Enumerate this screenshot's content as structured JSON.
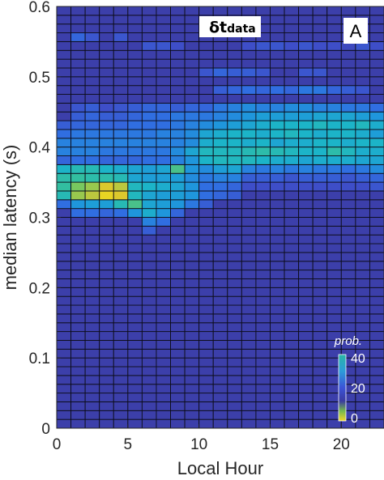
{
  "chart_data": {
    "type": "heatmap",
    "title_symbol": "δt",
    "title_subscript": "data",
    "panel_label": "A",
    "xlabel": "Local Hour",
    "ylabel": "median latency (s)",
    "xlim": [
      0,
      23
    ],
    "ylim": [
      0,
      0.6
    ],
    "x_ticks": [
      0,
      5,
      10,
      15,
      20
    ],
    "y_ticks": [
      0,
      0.1,
      0.2,
      0.3,
      0.4,
      0.5,
      0.6
    ],
    "x_tick_labels": [
      "0",
      "5",
      "10",
      "15",
      "20"
    ],
    "y_tick_labels": [
      "0",
      "0.1",
      "0.2",
      "0.3",
      "0.4",
      "0.5",
      "0.6"
    ],
    "x_bin_size_hours": 1,
    "y_bin_size_s": 0.0125,
    "colorbar": {
      "title": "prob.",
      "tick_labels": [
        "40",
        "20",
        "0"
      ],
      "ticks": [
        40,
        20,
        0
      ]
    },
    "background_value": 15,
    "cells": [
      [
        8,
        49,
        17
      ],
      [
        9,
        49,
        18
      ],
      [
        13,
        48,
        18
      ],
      [
        14,
        48,
        17
      ],
      [
        15,
        48,
        18
      ],
      [
        17,
        48,
        17
      ],
      [
        18,
        48,
        18
      ],
      [
        19,
        48,
        17
      ],
      [
        20,
        48,
        18
      ],
      [
        21,
        48,
        17
      ],
      [
        1,
        44,
        21
      ],
      [
        2,
        44,
        19
      ],
      [
        4,
        44,
        19
      ],
      [
        6,
        43,
        19
      ],
      [
        7,
        43,
        19
      ],
      [
        8,
        43,
        18
      ],
      [
        13,
        43,
        18
      ],
      [
        14,
        43,
        19
      ],
      [
        15,
        43,
        19
      ],
      [
        16,
        43,
        18
      ],
      [
        17,
        43,
        19
      ],
      [
        18,
        43,
        18
      ],
      [
        19,
        43,
        18
      ],
      [
        20,
        43,
        17
      ],
      [
        21,
        43,
        19
      ],
      [
        22,
        43,
        18
      ],
      [
        10,
        40,
        19
      ],
      [
        11,
        40,
        21
      ],
      [
        12,
        40,
        20
      ],
      [
        13,
        40,
        20
      ],
      [
        14,
        40,
        19
      ],
      [
        17,
        40,
        19
      ],
      [
        18,
        40,
        19
      ],
      [
        11,
        38,
        20
      ],
      [
        12,
        38,
        21
      ],
      [
        13,
        38,
        22
      ],
      [
        14,
        38,
        21
      ],
      [
        15,
        38,
        22
      ],
      [
        16,
        38,
        21
      ],
      [
        17,
        38,
        23
      ],
      [
        18,
        38,
        23
      ],
      [
        19,
        38,
        21
      ],
      [
        20,
        38,
        20
      ],
      [
        21,
        38,
        19
      ],
      [
        1,
        36,
        19
      ],
      [
        2,
        36,
        20
      ],
      [
        3,
        36,
        18
      ],
      [
        4,
        36,
        19
      ],
      [
        5,
        36,
        20
      ],
      [
        6,
        36,
        21
      ],
      [
        7,
        36,
        21
      ],
      [
        8,
        36,
        20
      ],
      [
        9,
        36,
        21
      ],
      [
        10,
        36,
        21
      ],
      [
        11,
        36,
        23
      ],
      [
        12,
        36,
        24
      ],
      [
        13,
        36,
        25
      ],
      [
        14,
        36,
        24
      ],
      [
        15,
        36,
        24
      ],
      [
        16,
        36,
        25
      ],
      [
        17,
        36,
        25
      ],
      [
        18,
        36,
        24
      ],
      [
        19,
        36,
        24
      ],
      [
        20,
        36,
        23
      ],
      [
        21,
        36,
        23
      ],
      [
        22,
        36,
        22
      ],
      [
        1,
        35,
        20
      ],
      [
        2,
        35,
        21
      ],
      [
        3,
        35,
        20
      ],
      [
        4,
        35,
        20
      ],
      [
        5,
        35,
        21
      ],
      [
        6,
        35,
        22
      ],
      [
        7,
        35,
        22
      ],
      [
        8,
        35,
        23
      ],
      [
        9,
        35,
        23
      ],
      [
        10,
        35,
        23
      ],
      [
        11,
        35,
        24
      ],
      [
        12,
        35,
        25
      ],
      [
        13,
        35,
        26
      ],
      [
        14,
        35,
        27
      ],
      [
        15,
        35,
        27
      ],
      [
        16,
        35,
        27
      ],
      [
        17,
        35,
        27
      ],
      [
        18,
        35,
        28
      ],
      [
        19,
        35,
        28
      ],
      [
        20,
        35,
        28
      ],
      [
        21,
        35,
        27
      ],
      [
        22,
        35,
        26
      ],
      [
        0,
        34,
        20
      ],
      [
        1,
        34,
        21
      ],
      [
        2,
        34,
        21
      ],
      [
        3,
        34,
        21
      ],
      [
        4,
        34,
        21
      ],
      [
        5,
        34,
        22
      ],
      [
        6,
        34,
        22
      ],
      [
        7,
        34,
        22
      ],
      [
        8,
        34,
        23
      ],
      [
        9,
        34,
        24
      ],
      [
        10,
        34,
        25
      ],
      [
        11,
        34,
        26
      ],
      [
        12,
        34,
        27
      ],
      [
        13,
        34,
        28
      ],
      [
        14,
        34,
        29
      ],
      [
        15,
        34,
        30
      ],
      [
        16,
        34,
        30
      ],
      [
        17,
        34,
        30
      ],
      [
        18,
        34,
        31
      ],
      [
        19,
        34,
        30
      ],
      [
        20,
        34,
        30
      ],
      [
        21,
        34,
        31
      ],
      [
        22,
        34,
        29
      ],
      [
        0,
        33,
        22
      ],
      [
        1,
        33,
        23
      ],
      [
        2,
        33,
        23
      ],
      [
        3,
        33,
        23
      ],
      [
        4,
        33,
        23
      ],
      [
        5,
        33,
        23
      ],
      [
        6,
        33,
        23
      ],
      [
        7,
        33,
        24
      ],
      [
        8,
        33,
        24
      ],
      [
        9,
        33,
        25
      ],
      [
        10,
        33,
        28
      ],
      [
        11,
        33,
        29
      ],
      [
        12,
        33,
        30
      ],
      [
        13,
        33,
        30
      ],
      [
        14,
        33,
        29
      ],
      [
        15,
        33,
        30
      ],
      [
        16,
        33,
        31
      ],
      [
        17,
        33,
        30
      ],
      [
        18,
        33,
        29
      ],
      [
        19,
        33,
        30
      ],
      [
        20,
        33,
        30
      ],
      [
        21,
        33,
        29
      ],
      [
        22,
        33,
        27
      ],
      [
        0,
        32,
        24
      ],
      [
        1,
        32,
        24
      ],
      [
        2,
        32,
        24
      ],
      [
        3,
        32,
        24
      ],
      [
        4,
        32,
        24
      ],
      [
        5,
        32,
        24
      ],
      [
        6,
        32,
        24
      ],
      [
        7,
        32,
        24
      ],
      [
        8,
        32,
        24
      ],
      [
        9,
        32,
        25
      ],
      [
        10,
        32,
        29
      ],
      [
        11,
        32,
        30
      ],
      [
        12,
        32,
        30
      ],
      [
        13,
        32,
        29
      ],
      [
        14,
        32,
        30
      ],
      [
        15,
        32,
        28
      ],
      [
        16,
        32,
        29
      ],
      [
        17,
        32,
        29
      ],
      [
        18,
        32,
        30
      ],
      [
        19,
        32,
        30
      ],
      [
        20,
        32,
        29
      ],
      [
        21,
        32,
        30
      ],
      [
        22,
        32,
        30
      ],
      [
        0,
        31,
        24
      ],
      [
        1,
        31,
        24
      ],
      [
        2,
        31,
        24
      ],
      [
        3,
        31,
        23
      ],
      [
        4,
        31,
        23
      ],
      [
        5,
        31,
        23
      ],
      [
        6,
        31,
        23
      ],
      [
        7,
        31,
        23
      ],
      [
        8,
        31,
        25
      ],
      [
        9,
        31,
        28
      ],
      [
        10,
        31,
        31
      ],
      [
        11,
        31,
        31
      ],
      [
        12,
        31,
        31
      ],
      [
        13,
        31,
        32
      ],
      [
        14,
        31,
        33
      ],
      [
        15,
        31,
        32
      ],
      [
        16,
        31,
        31
      ],
      [
        17,
        31,
        30
      ],
      [
        18,
        31,
        30
      ],
      [
        19,
        31,
        33
      ],
      [
        20,
        31,
        31
      ],
      [
        21,
        31,
        29
      ],
      [
        22,
        31,
        29
      ],
      [
        0,
        30,
        21
      ],
      [
        1,
        30,
        22
      ],
      [
        2,
        30,
        22
      ],
      [
        3,
        30,
        21
      ],
      [
        4,
        30,
        21
      ],
      [
        5,
        30,
        21
      ],
      [
        6,
        30,
        22
      ],
      [
        7,
        30,
        22
      ],
      [
        8,
        30,
        24
      ],
      [
        9,
        30,
        26
      ],
      [
        10,
        30,
        30
      ],
      [
        11,
        30,
        31
      ],
      [
        12,
        30,
        31
      ],
      [
        13,
        30,
        31
      ],
      [
        14,
        30,
        30
      ],
      [
        15,
        30,
        29
      ],
      [
        16,
        30,
        29
      ],
      [
        17,
        30,
        28
      ],
      [
        18,
        30,
        29
      ],
      [
        19,
        30,
        29
      ],
      [
        20,
        30,
        29
      ],
      [
        21,
        30,
        28
      ],
      [
        22,
        30,
        28
      ],
      [
        0,
        29,
        30
      ],
      [
        1,
        29,
        32
      ],
      [
        2,
        29,
        32
      ],
      [
        3,
        29,
        30
      ],
      [
        4,
        29,
        29
      ],
      [
        5,
        29,
        28
      ],
      [
        6,
        29,
        27
      ],
      [
        7,
        29,
        28
      ],
      [
        8,
        29,
        35
      ],
      [
        9,
        29,
        26
      ],
      [
        10,
        29,
        25
      ],
      [
        11,
        29,
        27
      ],
      [
        12,
        29,
        28
      ],
      [
        13,
        29,
        24
      ],
      [
        14,
        29,
        23
      ],
      [
        15,
        29,
        24
      ],
      [
        16,
        29,
        23
      ],
      [
        17,
        29,
        24
      ],
      [
        18,
        29,
        23
      ],
      [
        19,
        29,
        23
      ],
      [
        20,
        29,
        22
      ],
      [
        21,
        29,
        23
      ],
      [
        22,
        29,
        25
      ],
      [
        0,
        28,
        33
      ],
      [
        1,
        28,
        34
      ],
      [
        2,
        28,
        33
      ],
      [
        3,
        28,
        33
      ],
      [
        4,
        28,
        32
      ],
      [
        5,
        28,
        28
      ],
      [
        6,
        28,
        27
      ],
      [
        7,
        28,
        27
      ],
      [
        8,
        28,
        27
      ],
      [
        9,
        28,
        25
      ],
      [
        10,
        28,
        23
      ],
      [
        11,
        28,
        24
      ],
      [
        12,
        28,
        24
      ],
      [
        13,
        28,
        20
      ],
      [
        14,
        28,
        20
      ],
      [
        15,
        28,
        20
      ],
      [
        16,
        28,
        19
      ],
      [
        17,
        28,
        20
      ],
      [
        18,
        28,
        20
      ],
      [
        19,
        28,
        20
      ],
      [
        20,
        28,
        19
      ],
      [
        21,
        28,
        20
      ],
      [
        22,
        28,
        21
      ],
      [
        0,
        27,
        34
      ],
      [
        1,
        27,
        37
      ],
      [
        2,
        27,
        38
      ],
      [
        3,
        27,
        40
      ],
      [
        4,
        27,
        39
      ],
      [
        5,
        27,
        31
      ],
      [
        6,
        27,
        30
      ],
      [
        7,
        27,
        29
      ],
      [
        8,
        27,
        28
      ],
      [
        9,
        27,
        26
      ],
      [
        10,
        27,
        22
      ],
      [
        11,
        27,
        22
      ],
      [
        12,
        27,
        21
      ],
      [
        13,
        27,
        18
      ],
      [
        14,
        27,
        18
      ],
      [
        15,
        27,
        18
      ],
      [
        16,
        27,
        18
      ],
      [
        17,
        27,
        18
      ],
      [
        18,
        27,
        18
      ],
      [
        19,
        27,
        18
      ],
      [
        20,
        27,
        18
      ],
      [
        21,
        27,
        18
      ],
      [
        22,
        27,
        19
      ],
      [
        0,
        26,
        32
      ],
      [
        1,
        26,
        38
      ],
      [
        2,
        26,
        39
      ],
      [
        3,
        26,
        42
      ],
      [
        4,
        26,
        40
      ],
      [
        5,
        26,
        31
      ],
      [
        6,
        26,
        28
      ],
      [
        7,
        26,
        27
      ],
      [
        8,
        26,
        27
      ],
      [
        9,
        26,
        26
      ],
      [
        10,
        26,
        22
      ],
      [
        11,
        26,
        21
      ],
      [
        12,
        26,
        20
      ],
      [
        0,
        25,
        22
      ],
      [
        1,
        25,
        26
      ],
      [
        2,
        25,
        27
      ],
      [
        3,
        25,
        27
      ],
      [
        4,
        25,
        32
      ],
      [
        5,
        25,
        35
      ],
      [
        6,
        25,
        28
      ],
      [
        7,
        25,
        27
      ],
      [
        8,
        25,
        26
      ],
      [
        9,
        25,
        23
      ],
      [
        10,
        25,
        20
      ],
      [
        1,
        24,
        22
      ],
      [
        2,
        24,
        22
      ],
      [
        3,
        24,
        21
      ],
      [
        4,
        24,
        22
      ],
      [
        5,
        24,
        26
      ],
      [
        6,
        24,
        29
      ],
      [
        7,
        24,
        26
      ],
      [
        8,
        24,
        21
      ],
      [
        6,
        23,
        24
      ],
      [
        7,
        23,
        22
      ],
      [
        6,
        22,
        20
      ]
    ]
  }
}
